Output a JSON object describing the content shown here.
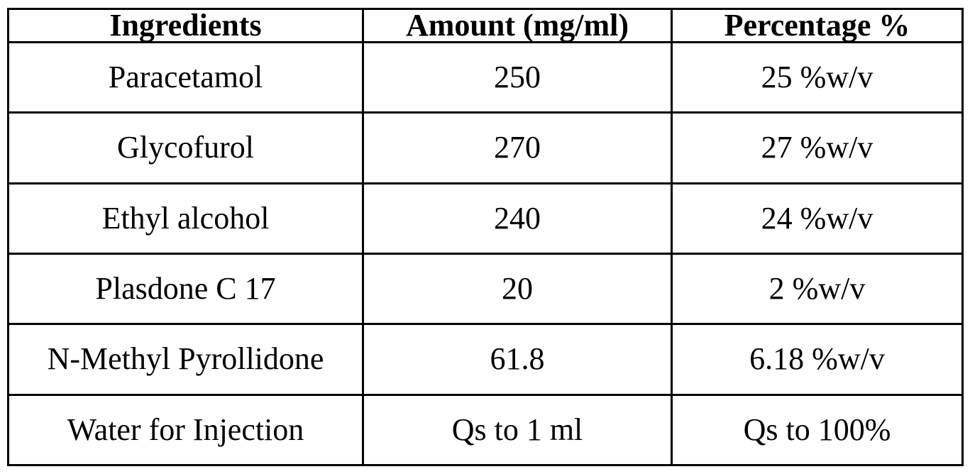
{
  "table": {
    "headers": [
      "Ingredients",
      "Amount (mg/ml)",
      "Percentage %"
    ],
    "rows": [
      [
        "Paracetamol",
        "250",
        "25 %w/v"
      ],
      [
        "Glycofurol",
        "270",
        "27 %w/v"
      ],
      [
        "Ethyl alcohol",
        "240",
        "24 %w/v"
      ],
      [
        "Plasdone C 17",
        "20",
        "2 %w/v"
      ],
      [
        "N-Methyl Pyrollidone",
        "61.8",
        "6.18 %w/v"
      ],
      [
        "Water for Injection",
        "Qs to 1 ml",
        "Qs to 100%"
      ]
    ]
  }
}
